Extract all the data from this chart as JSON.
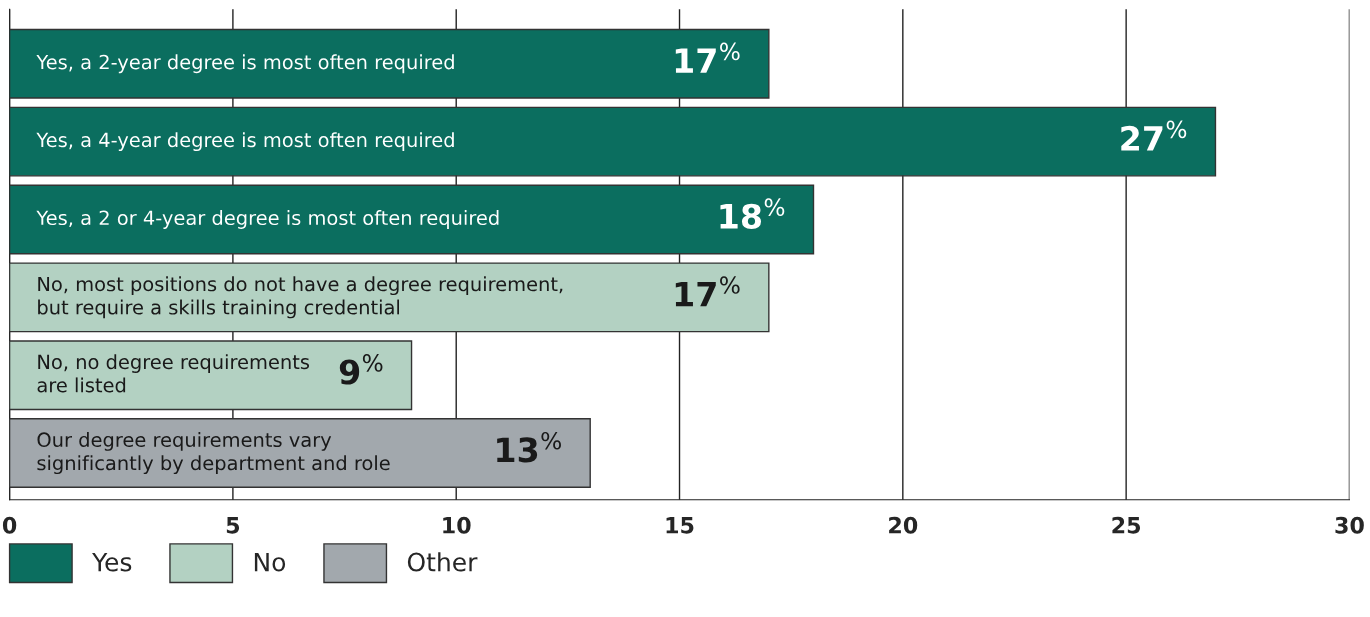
{
  "chart_data": {
    "type": "bar",
    "orientation": "horizontal",
    "categories": [
      "Yes, a 2-year degree is most often required",
      "Yes, a 4-year degree is most often required",
      "Yes, a 2 or 4-year degree is most often required",
      "No, most positions do not have a degree requirement,\nbut require a skills training credential",
      "No, no degree requirements\nare listed",
      "Our degree requirements vary\nsignificantly by department and role"
    ],
    "series": [
      {
        "name": "Yes",
        "color": "#0b6e5f",
        "values": [
          17,
          27,
          18,
          null,
          null,
          null
        ],
        "value_labels": [
          "17$^{%}$",
          "27$^{%}$",
          "18$^{%}$",
          null,
          null,
          null
        ]
      },
      {
        "name": "No",
        "color": "#b3d1c2",
        "values": [
          null,
          null,
          null,
          17,
          9,
          null
        ],
        "value_labels": [
          null,
          null,
          null,
          "17$^{%}$",
          "9$^{%}$",
          null
        ]
      },
      {
        "name": "Other",
        "color": "#a2a8ad",
        "values": [
          null,
          null,
          null,
          null,
          null,
          13
        ],
        "value_labels": [
          null,
          null,
          null,
          null,
          null,
          "13$^{%}$"
        ]
      }
    ],
    "xlim": [
      0,
      30
    ],
    "xticks": [
      0,
      5,
      10,
      15,
      20,
      25,
      30
    ],
    "grid": "x",
    "legend": "bottom left"
  }
}
